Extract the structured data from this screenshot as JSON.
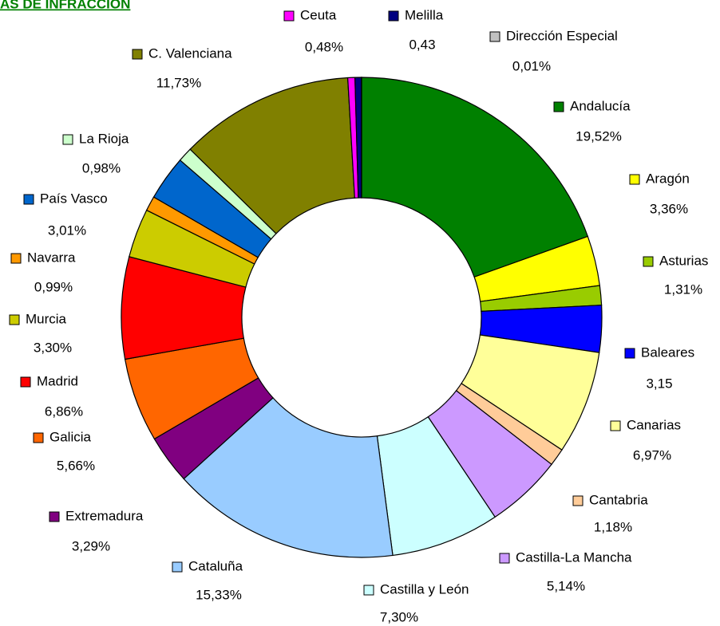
{
  "chart_data": {
    "type": "donut",
    "title": "AS DE INFRACCIÓN",
    "categories": [
      "Andalucía",
      "Aragón",
      "Asturias",
      "Baleares",
      "Canarias",
      "Cantabria",
      "Castilla-La Mancha",
      "Castilla y León",
      "Cataluña",
      "Extremadura",
      "Galicia",
      "Madrid",
      "Murcia",
      "Navarra",
      "País Vasco",
      "La Rioja",
      "C. Valenciana",
      "Ceuta",
      "Melilla",
      "Dirección Especial"
    ],
    "values": [
      19.52,
      3.36,
      1.31,
      3.15,
      6.97,
      1.18,
      5.14,
      7.3,
      15.33,
      3.29,
      5.66,
      6.86,
      3.3,
      0.99,
      3.01,
      0.98,
      11.73,
      0.48,
      0.43,
      0.01
    ],
    "value_labels": [
      "19,52%",
      "3,36%",
      "1,31%",
      "3,15",
      "6,97%",
      "1,18%",
      "5,14%",
      "7,30%",
      "15,33%",
      "3,29%",
      "5,66%",
      "6,86%",
      "3,30%",
      "0,99%",
      "3,01%",
      "0,98%",
      "11,73%",
      "0,48%",
      "0,43",
      "0,01%"
    ],
    "colors": [
      "#008000",
      "#ffff00",
      "#99cc00",
      "#0000ff",
      "#ffff99",
      "#ffcc99",
      "#cc99ff",
      "#ccffff",
      "#99ccff",
      "#800080",
      "#ff6600",
      "#ff0000",
      "#cccc00",
      "#ff9900",
      "#0066cc",
      "#ccffcc",
      "#808000",
      "#ff00ff",
      "#000080",
      "#c0c0c0"
    ]
  }
}
